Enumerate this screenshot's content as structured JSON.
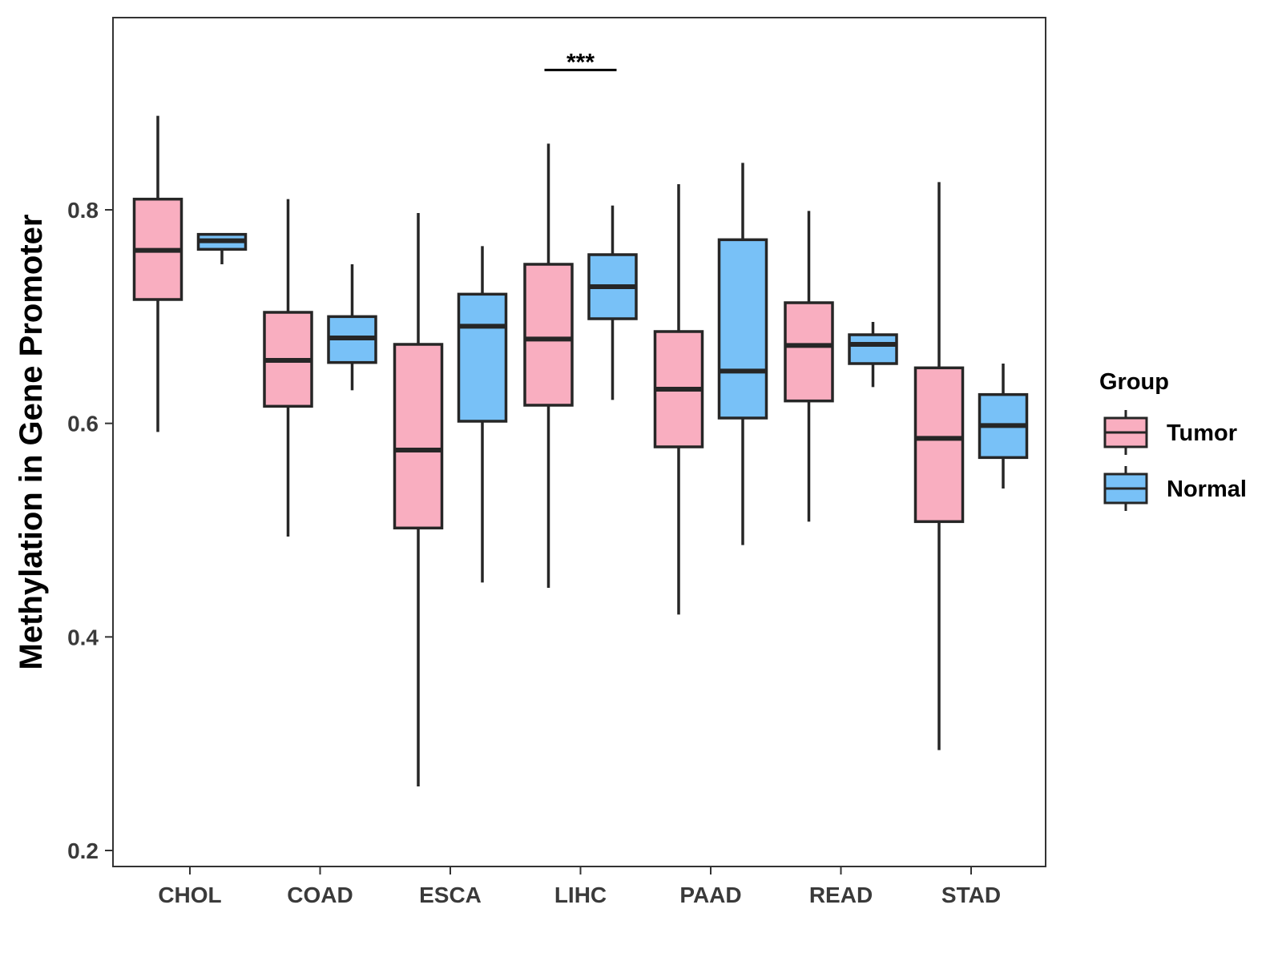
{
  "chart_data": {
    "type": "boxplot",
    "title": "",
    "xlabel": "",
    "ylabel": "Methylation in Gene Promoter",
    "ylim": [
      0.185,
      0.98
    ],
    "yticks": [
      0.2,
      0.4,
      0.6,
      0.8
    ],
    "ytick_labels": [
      "0.2",
      "0.4",
      "0.6",
      "0.8"
    ],
    "grid": false,
    "categories": [
      "CHOL",
      "COAD",
      "ESCA",
      "LIHC",
      "PAAD",
      "READ",
      "STAD"
    ],
    "legend": {
      "title": "Group",
      "position": "right",
      "entries": [
        {
          "name": "Tumor",
          "color": "#F9AEC0"
        },
        {
          "name": "Normal",
          "color": "#78C1F7"
        }
      ]
    },
    "series": [
      {
        "name": "Tumor",
        "color": "#F9AEC0",
        "boxes": [
          {
            "category": "CHOL",
            "whisker_low": 0.592,
            "q1": 0.716,
            "median": 0.762,
            "q3": 0.81,
            "whisker_high": 0.888
          },
          {
            "category": "COAD",
            "whisker_low": 0.494,
            "q1": 0.616,
            "median": 0.659,
            "q3": 0.704,
            "whisker_high": 0.81
          },
          {
            "category": "ESCA",
            "whisker_low": 0.26,
            "q1": 0.502,
            "median": 0.575,
            "q3": 0.674,
            "whisker_high": 0.797
          },
          {
            "category": "LIHC",
            "whisker_low": 0.446,
            "q1": 0.617,
            "median": 0.679,
            "q3": 0.749,
            "whisker_high": 0.862
          },
          {
            "category": "PAAD",
            "whisker_low": 0.421,
            "q1": 0.578,
            "median": 0.632,
            "q3": 0.686,
            "whisker_high": 0.824
          },
          {
            "category": "READ",
            "whisker_low": 0.508,
            "q1": 0.621,
            "median": 0.673,
            "q3": 0.713,
            "whisker_high": 0.799
          },
          {
            "category": "STAD",
            "whisker_low": 0.294,
            "q1": 0.508,
            "median": 0.586,
            "q3": 0.652,
            "whisker_high": 0.826
          }
        ]
      },
      {
        "name": "Normal",
        "color": "#78C1F7",
        "boxes": [
          {
            "category": "CHOL",
            "whisker_low": 0.749,
            "q1": 0.763,
            "median": 0.771,
            "q3": 0.777,
            "whisker_high": 0.777
          },
          {
            "category": "COAD",
            "whisker_low": 0.631,
            "q1": 0.657,
            "median": 0.68,
            "q3": 0.7,
            "whisker_high": 0.749
          },
          {
            "category": "ESCA",
            "whisker_low": 0.451,
            "q1": 0.602,
            "median": 0.691,
            "q3": 0.721,
            "whisker_high": 0.766
          },
          {
            "category": "LIHC",
            "whisker_low": 0.622,
            "q1": 0.698,
            "median": 0.728,
            "q3": 0.758,
            "whisker_high": 0.804
          },
          {
            "category": "PAAD",
            "whisker_low": 0.486,
            "q1": 0.605,
            "median": 0.649,
            "q3": 0.772,
            "whisker_high": 0.844
          },
          {
            "category": "READ",
            "whisker_low": 0.634,
            "q1": 0.656,
            "median": 0.674,
            "q3": 0.683,
            "whisker_high": 0.695
          },
          {
            "category": "STAD",
            "whisker_low": 0.539,
            "q1": 0.568,
            "median": 0.598,
            "q3": 0.627,
            "whisker_high": 0.656
          }
        ]
      }
    ],
    "annotations": [
      {
        "text": "***",
        "category": "LIHC",
        "type": "significance",
        "y": 0.94
      }
    ]
  }
}
